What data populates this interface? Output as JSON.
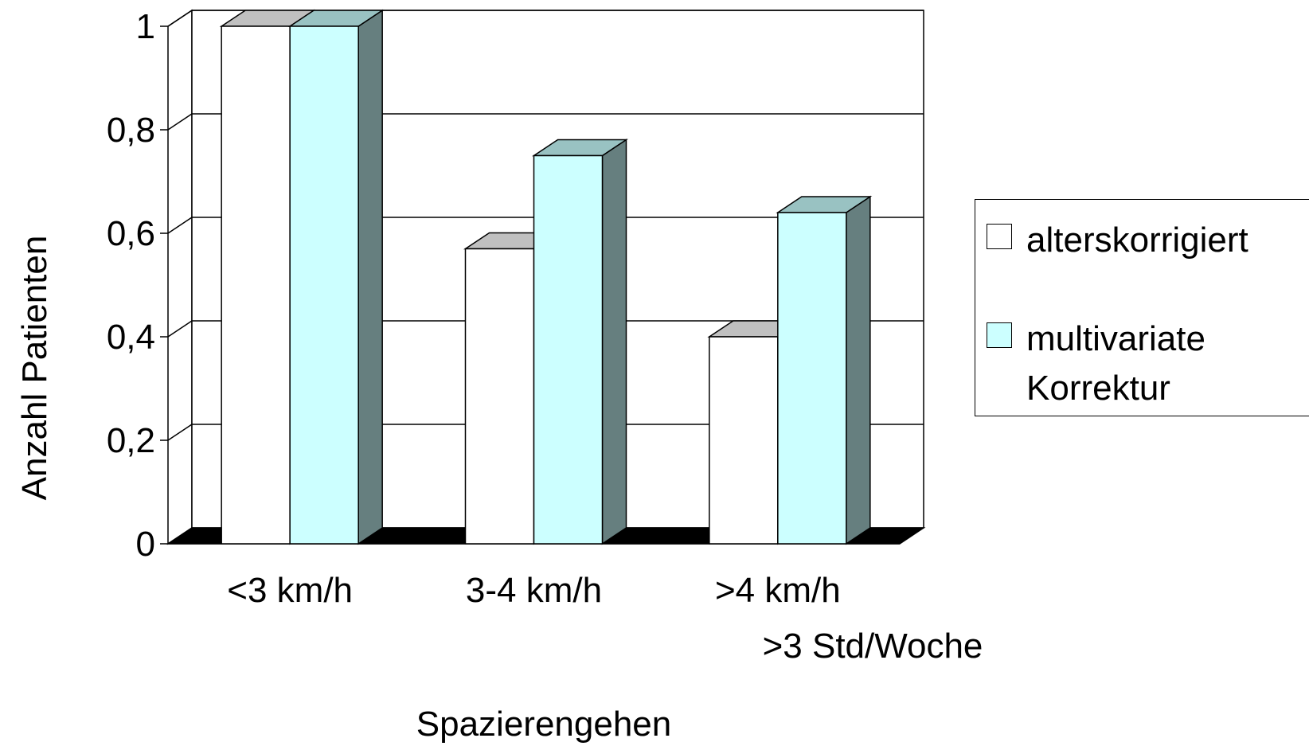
{
  "chart_data": {
    "type": "bar",
    "categories": [
      "<3 km/h",
      "3-4 km/h",
      ">4 km/h"
    ],
    "series": [
      {
        "name": "alterskorrigiert",
        "values": [
          1.0,
          0.57,
          0.4
        ],
        "color": "#ffffff",
        "top_color": "#c0c0c0",
        "side_color": "#808080"
      },
      {
        "name": "multivariate\nKorrektur",
        "values": [
          1.0,
          0.75,
          0.64
        ],
        "color": "#ccffff",
        "top_color": "#99c2c2",
        "side_color": "#667f7f"
      }
    ],
    "ylabel": "Anzahl Patienten",
    "xlabel": "Spazierengehen",
    "annotation": ">3 Std/Woche",
    "ylim": [
      0,
      1
    ],
    "yticks": [
      "0",
      "0,2",
      "0,4",
      "0,6",
      "0,8",
      "1"
    ],
    "grid": true,
    "legend_position": "right",
    "three_d": true
  }
}
